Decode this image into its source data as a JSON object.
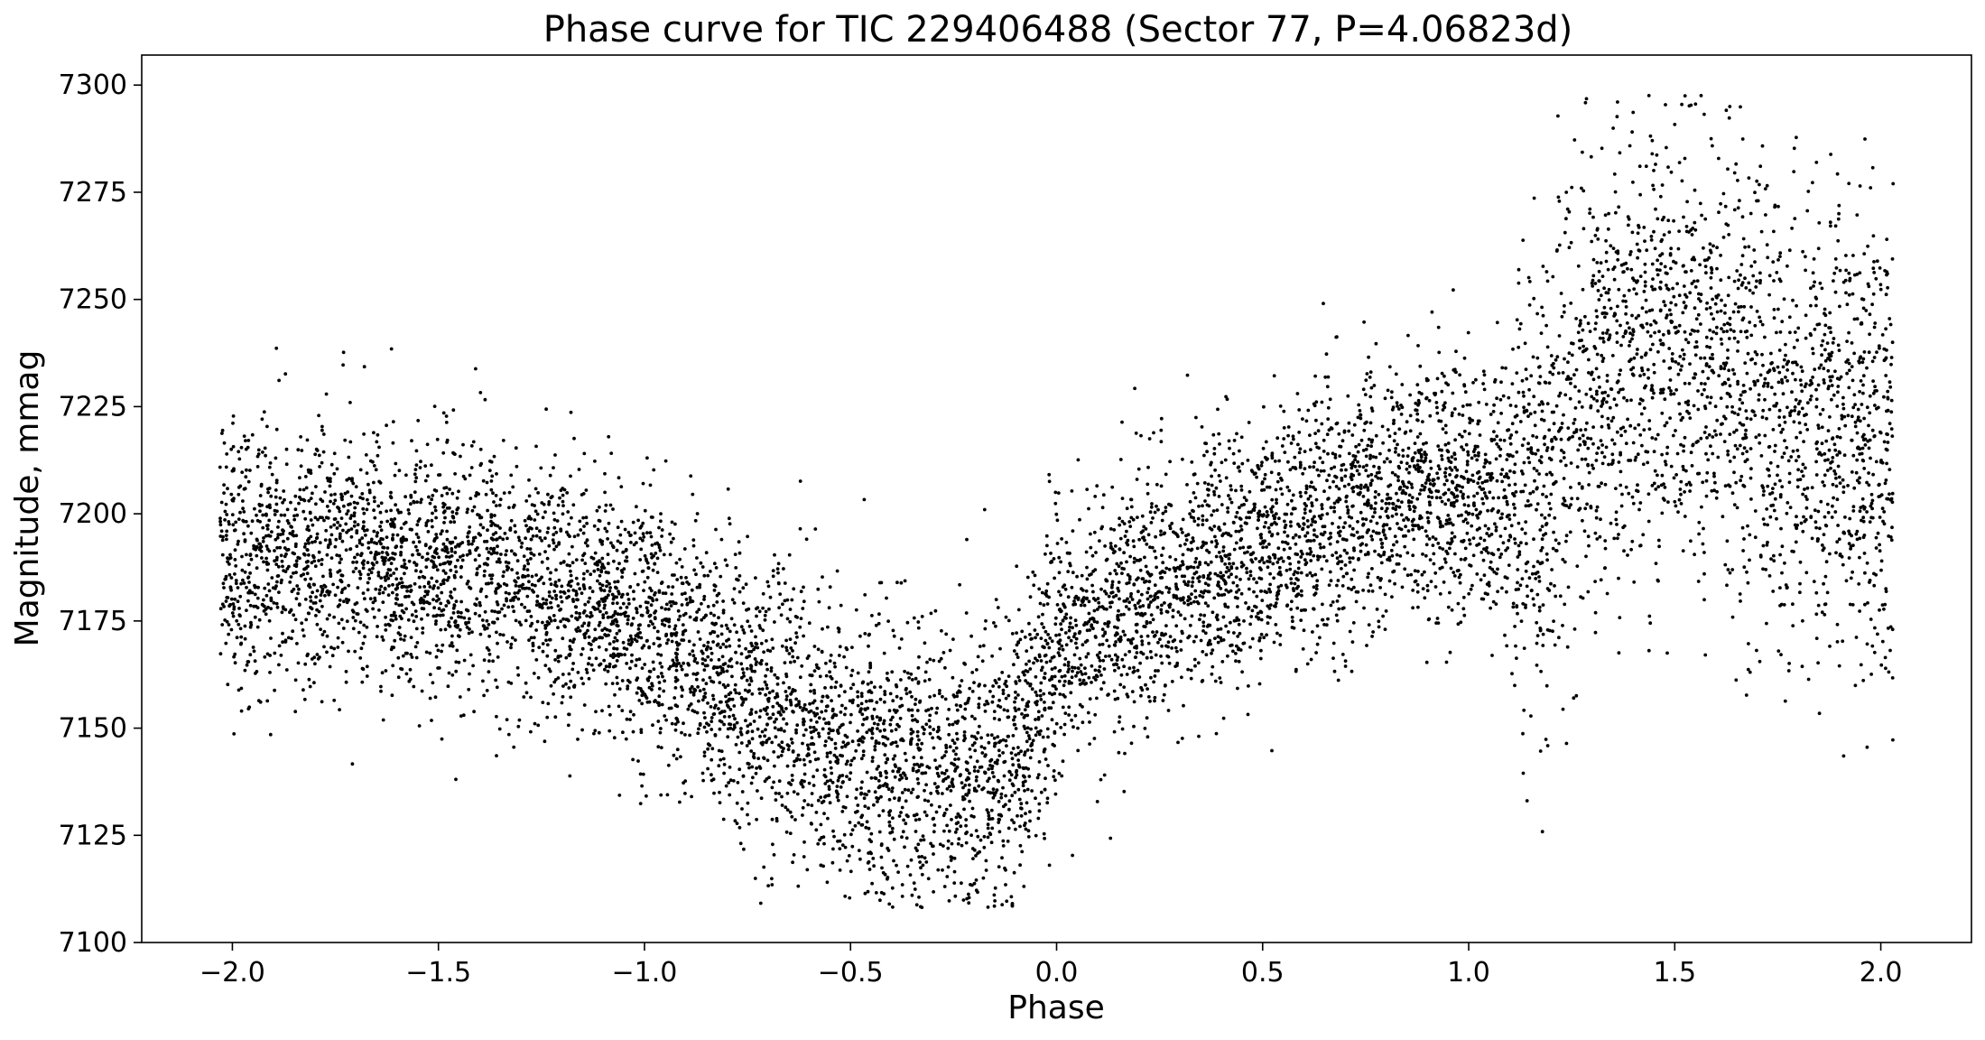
{
  "chart_data": {
    "type": "scatter",
    "title": "Phase curve for TIC 229406488 (Sector 77, P=4.06823d)",
    "xlabel": "Phase",
    "ylabel": "Magnitude, mmag",
    "xlim": [
      -2.22,
      2.22
    ],
    "ylim": [
      7100,
      7307
    ],
    "xticks": [
      -2.0,
      -1.5,
      -1.0,
      -0.5,
      0.0,
      0.5,
      1.0,
      1.5,
      2.0
    ],
    "xtick_labels": [
      "−2.0",
      "−1.5",
      "−1.0",
      "−0.5",
      "0.0",
      "0.5",
      "1.0",
      "1.5",
      "2.0"
    ],
    "yticks": [
      7100,
      7125,
      7150,
      7175,
      7200,
      7225,
      7250,
      7275,
      7300
    ],
    "ytick_labels": [
      "7100",
      "7125",
      "7150",
      "7175",
      "7200",
      "7225",
      "7250",
      "7275",
      "7300"
    ],
    "grid": false,
    "marker_color": "#000000",
    "series": [
      {
        "x_range": [
          -2.03,
          2.03
        ],
        "trend": {
          "x": [
            -2.03,
            -1.9,
            -1.7,
            -1.5,
            -1.3,
            -1.1,
            -0.9,
            -0.7,
            -0.55,
            -0.4,
            -0.25,
            -0.1,
            0.0,
            0.15,
            0.35,
            0.55,
            0.75,
            0.9,
            1.0,
            1.15,
            1.3,
            1.45,
            1.6,
            1.75,
            1.9,
            2.03
          ],
          "y": [
            7190,
            7190,
            7190,
            7188,
            7185,
            7178,
            7168,
            7155,
            7148,
            7143,
            7140,
            7142,
            7170,
            7178,
            7188,
            7196,
            7202,
            7208,
            7205,
            7200,
            7230,
            7240,
            7235,
            7222,
            7220,
            7215
          ]
        }
      }
    ]
  }
}
